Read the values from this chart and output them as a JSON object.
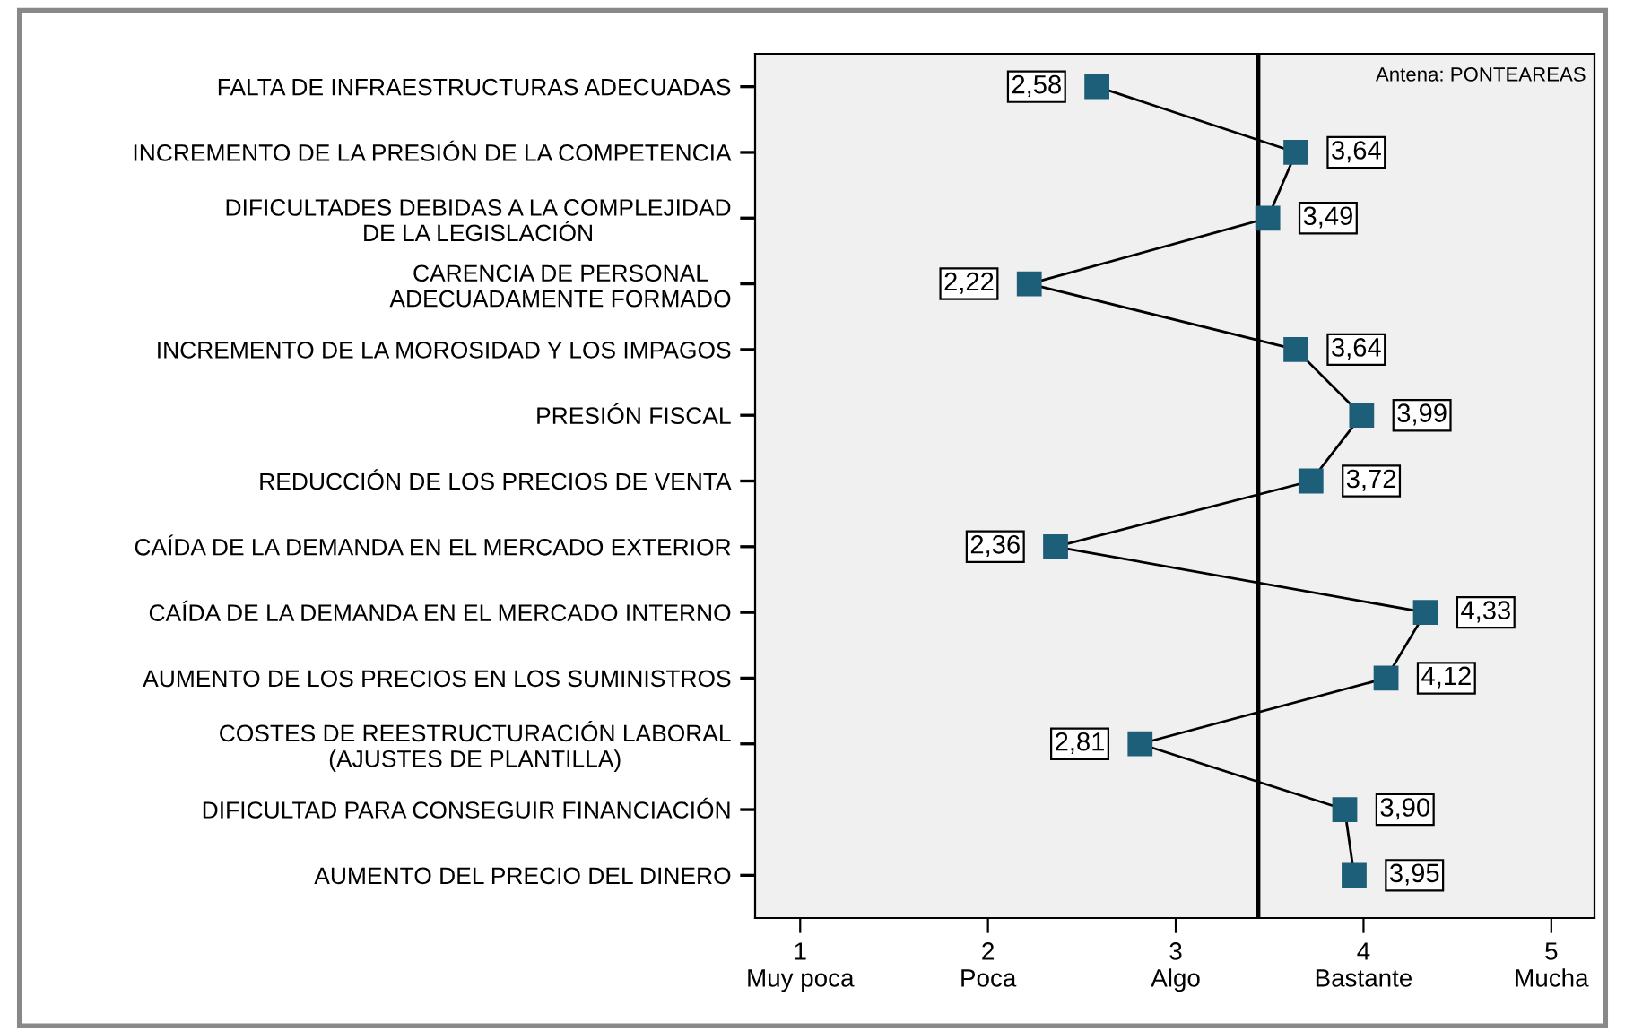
{
  "chart_data": {
    "type": "line",
    "orientation": "horizontal",
    "marker": "square",
    "grid": false,
    "categories": [
      "FALTA DE INFRAESTRUCTURAS ADECUADAS",
      "INCREMENTO DE LA PRESIÓN DE LA COMPETENCIA",
      "DIFICULTADES DEBIDAS A LA COMPLEJIDAD\nDE LA LEGISLACIÓN",
      "CARENCIA DE PERSONAL\nADECUADAMENTE FORMADO",
      "INCREMENTO DE LA MOROSIDAD Y LOS IMPAGOS",
      "PRESIÓN FISCAL",
      "REDUCCIÓN DE LOS PRECIOS DE VENTA",
      "CAÍDA DE LA DEMANDA EN EL MERCADO EXTERIOR",
      "CAÍDA DE LA DEMANDA EN EL MERCADO INTERNO",
      "AUMENTO DE LOS PRECIOS EN LOS SUMINISTROS",
      "COSTES DE REESTRUCTURACIÓN LABORAL\n(AJUSTES DE PLANTILLA)",
      "DIFICULTAD PARA CONSEGUIR FINANCIACIÓN",
      "AUMENTO DEL PRECIO DEL DINERO"
    ],
    "series": [
      {
        "color": "#1d5f78",
        "values": [
          2.58,
          3.64,
          3.49,
          2.22,
          3.64,
          3.99,
          3.72,
          2.36,
          4.33,
          4.12,
          2.81,
          3.9,
          3.95
        ],
        "value_labels": [
          "2,58",
          "3,64",
          "3,49",
          "2,22",
          "3,64",
          "3,99",
          "3,72",
          "2,36",
          "4,33",
          "4,12",
          "2,81",
          "3,90",
          "3,95"
        ]
      }
    ],
    "xlim": [
      0.76,
      5.23
    ],
    "xticks": [
      {
        "value": 1,
        "label": "1\nMuy poca"
      },
      {
        "value": 2,
        "label": "2\nPoca"
      },
      {
        "value": 3,
        "label": "3\nAlgo"
      },
      {
        "value": 4,
        "label": "4\nBastante"
      },
      {
        "value": 5,
        "label": "5\nMucha"
      }
    ],
    "ref_lines": [
      {
        "axis": "x",
        "value": 3.44,
        "color": "#000000"
      }
    ],
    "annotations": [
      "Antena: PONTEAREAS"
    ]
  }
}
